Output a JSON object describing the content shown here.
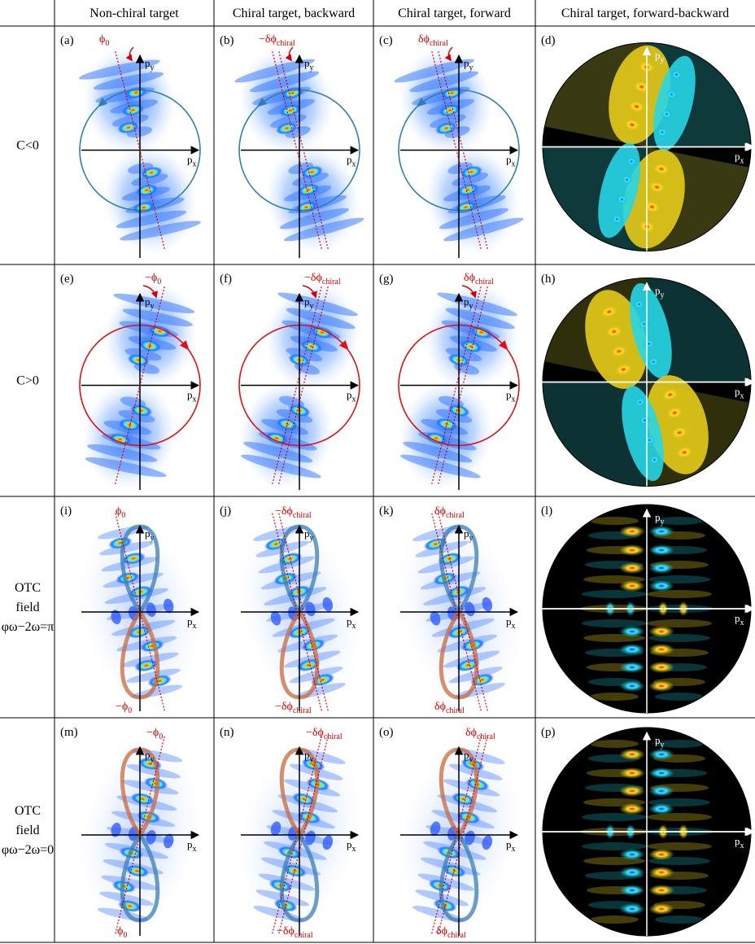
{
  "columns": [
    "Non-chiral target",
    "Chiral target, backward",
    "Chiral target, forward",
    "Chiral target, forward-backward"
  ],
  "rows": [
    {
      "label_lines": [
        "C<0"
      ],
      "kind": "circular",
      "sign": -1
    },
    {
      "label_lines": [
        "C>0"
      ],
      "kind": "circular",
      "sign": 1
    },
    {
      "label_lines": [
        "OTC",
        "field",
        "φω−2ω=π"
      ],
      "kind": "otc",
      "sign": -1
    },
    {
      "label_lines": [
        "OTC",
        "field",
        "φω−2ω=0"
      ],
      "kind": "otc",
      "sign": 1
    }
  ],
  "panel_labels": [
    "(a)",
    "(b)",
    "(c)",
    "(d)",
    "(e)",
    "(f)",
    "(g)",
    "(h)",
    "(i)",
    "(j)",
    "(k)",
    "(l)",
    "(m)",
    "(n)",
    "(o)",
    "(p)"
  ],
  "axis_labels": {
    "px": "px",
    "py": "py"
  },
  "annotations": {
    "phi0": "ϕ0",
    "minus_phi0": "−ϕ0",
    "dphi": "δϕchiral",
    "minus_dphi": "−δϕchiral"
  },
  "colors": {
    "jet_low": "#0a2cff",
    "jet_mid": "#2ef0ff",
    "jet_high": "#ffd000",
    "jet_peak": "#ff1a00",
    "diff_positive": "#ffe12a",
    "diff_negative": "#34f0ff",
    "annotation_red": "#d40000",
    "circle_blue": "#2f7fb0",
    "circle_red": "#e01010",
    "lissajous_orange": "#c86a3c",
    "lissajous_blue": "#3a7db5"
  }
}
